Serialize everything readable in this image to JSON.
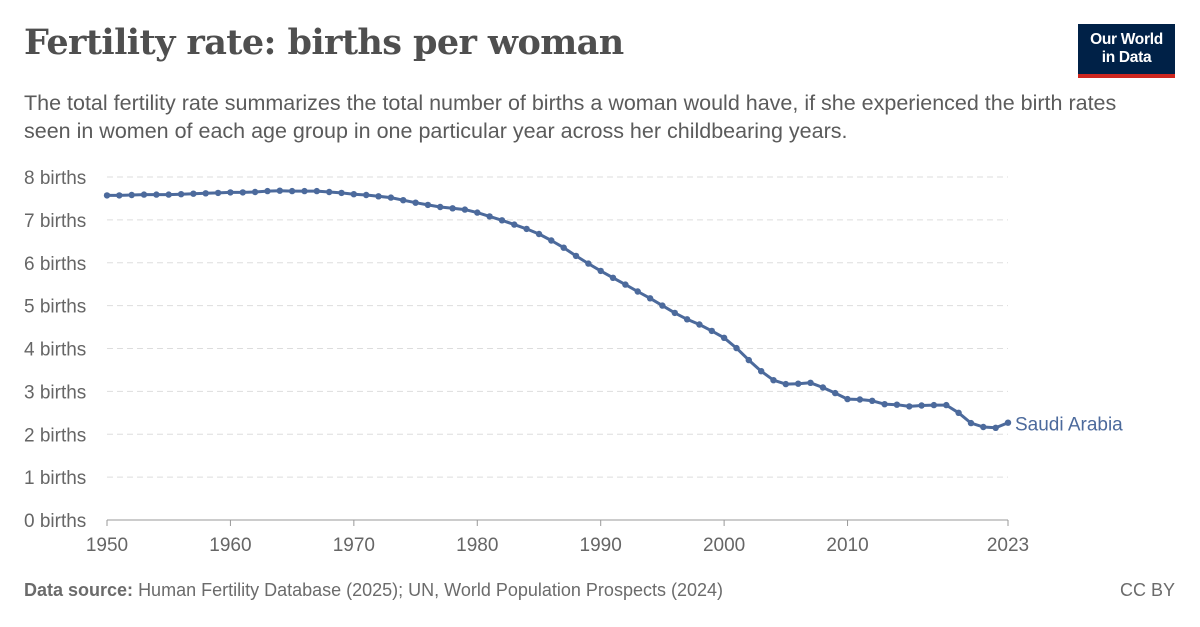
{
  "header": {
    "title": "Fertility rate: births per woman",
    "subtitle": "The total fertility rate summarizes the total number of births a woman would have, if she experienced the birth rates seen in women of each age group in one particular year across her childbearing years.",
    "logo_line1": "Our World",
    "logo_line2": "in Data"
  },
  "footer": {
    "source_label": "Data source:",
    "source_text": "Human Fertility Database (2025); UN, World Population Prospects (2024)",
    "license": "CC BY"
  },
  "colors": {
    "series": "#4c6a9c",
    "grid": "#dddddd",
    "axis": "#666666",
    "logo_bg": "#002147",
    "logo_accent": "#ce261e"
  },
  "chart_data": {
    "type": "line",
    "title": "Fertility rate: births per woman",
    "xlabel": "",
    "ylabel": "",
    "xlim": [
      1950,
      2023
    ],
    "ylim": [
      0,
      8
    ],
    "grid": true,
    "y_ticks": [
      0,
      1,
      2,
      3,
      4,
      5,
      6,
      7,
      8
    ],
    "y_tick_labels": [
      "0 births",
      "1 births",
      "2 births",
      "3 births",
      "4 births",
      "5 births",
      "6 births",
      "7 births",
      "8 births"
    ],
    "x_ticks": [
      1950,
      1960,
      1970,
      1980,
      1990,
      2000,
      2010,
      2023
    ],
    "x_tick_labels": [
      "1950",
      "1960",
      "1970",
      "1980",
      "1990",
      "2000",
      "2010",
      "2023"
    ],
    "series": [
      {
        "name": "Saudi Arabia",
        "x": [
          1950,
          1951,
          1952,
          1953,
          1954,
          1955,
          1956,
          1957,
          1958,
          1959,
          1960,
          1961,
          1962,
          1963,
          1964,
          1965,
          1966,
          1967,
          1968,
          1969,
          1970,
          1971,
          1972,
          1973,
          1974,
          1975,
          1976,
          1977,
          1978,
          1979,
          1980,
          1981,
          1982,
          1983,
          1984,
          1985,
          1986,
          1987,
          1988,
          1989,
          1990,
          1991,
          1992,
          1993,
          1994,
          1995,
          1996,
          1997,
          1998,
          1999,
          2000,
          2001,
          2002,
          2003,
          2004,
          2005,
          2006,
          2007,
          2008,
          2009,
          2010,
          2011,
          2012,
          2013,
          2014,
          2015,
          2016,
          2017,
          2018,
          2019,
          2020,
          2021,
          2022,
          2023
        ],
        "values": [
          7.57,
          7.57,
          7.58,
          7.59,
          7.59,
          7.59,
          7.6,
          7.61,
          7.62,
          7.63,
          7.64,
          7.64,
          7.65,
          7.67,
          7.68,
          7.67,
          7.67,
          7.67,
          7.65,
          7.63,
          7.6,
          7.58,
          7.55,
          7.52,
          7.46,
          7.4,
          7.35,
          7.3,
          7.27,
          7.24,
          7.17,
          7.08,
          6.99,
          6.89,
          6.79,
          6.67,
          6.52,
          6.35,
          6.16,
          5.98,
          5.81,
          5.65,
          5.49,
          5.33,
          5.17,
          5.0,
          4.83,
          4.68,
          4.56,
          4.41,
          4.25,
          4.01,
          3.73,
          3.47,
          3.26,
          3.17,
          3.18,
          3.2,
          3.09,
          2.96,
          2.82,
          2.81,
          2.78,
          2.7,
          2.69,
          2.65,
          2.67,
          2.68,
          2.68,
          2.5,
          2.26,
          2.17,
          2.15,
          2.27
        ]
      }
    ]
  }
}
